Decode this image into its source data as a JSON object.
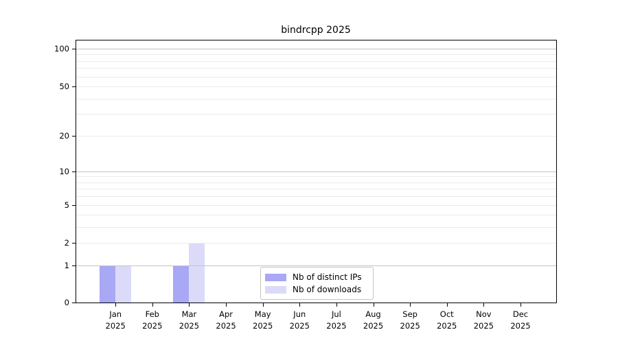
{
  "title": "bindrcpp 2025",
  "chart_data": {
    "type": "bar",
    "title": "bindrcpp 2025",
    "year": "2025",
    "months": [
      "Jan",
      "Feb",
      "Mar",
      "Apr",
      "May",
      "Jun",
      "Jul",
      "Aug",
      "Sep",
      "Oct",
      "Nov",
      "Dec"
    ],
    "categories": [
      "Jan 2025",
      "Feb 2025",
      "Mar 2025",
      "Apr 2025",
      "May 2025",
      "Jun 2025",
      "Jul 2025",
      "Aug 2025",
      "Sep 2025",
      "Oct 2025",
      "Nov 2025",
      "Dec 2025"
    ],
    "series": [
      {
        "name": "Nb of distinct IPs",
        "color": "#a8a8f5",
        "values": [
          1,
          0,
          1,
          0,
          0,
          0,
          0,
          0,
          0,
          0,
          0,
          0
        ]
      },
      {
        "name": "Nb of downloads",
        "color": "#dbdbf9",
        "values": [
          1,
          0,
          2,
          0,
          0,
          0,
          0,
          0,
          0,
          0,
          0,
          0
        ]
      }
    ],
    "y_axis": {
      "scale": "log1p",
      "ticks": [
        0,
        1,
        2,
        5,
        10,
        20,
        50,
        100
      ],
      "tick_labels": [
        "0",
        "1",
        "2",
        "5",
        "10",
        "20",
        "50",
        "100"
      ],
      "major_gridlines": [
        1,
        10,
        100
      ],
      "minor_gridlines": [
        2,
        3,
        4,
        5,
        6,
        7,
        8,
        9,
        20,
        30,
        40,
        50,
        60,
        70,
        80,
        90
      ],
      "max": 100
    },
    "grid": "horizontal",
    "legend_position": "bottom-center-inside",
    "colors": {
      "frame": "#000000",
      "grid_minor": "#ebebeb",
      "grid_major": "#c2c2c2",
      "background": "#ffffff"
    }
  }
}
